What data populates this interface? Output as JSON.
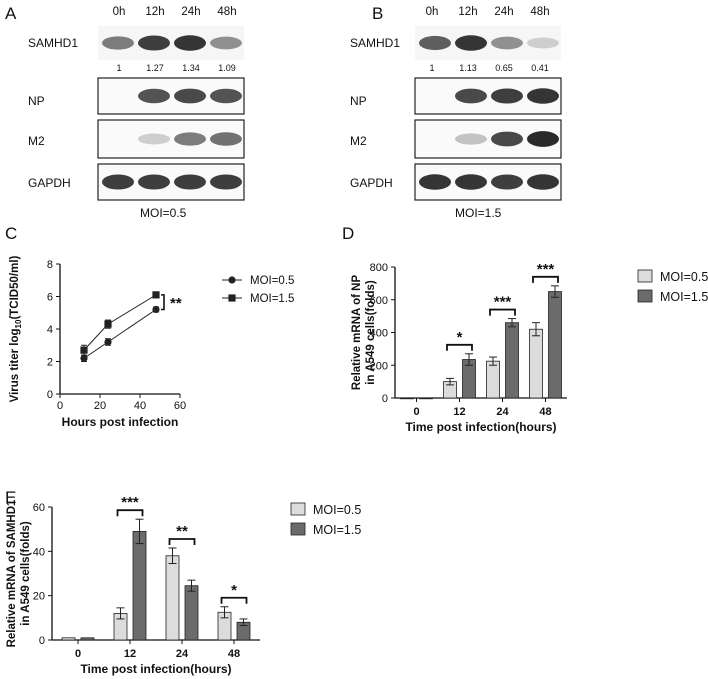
{
  "panel_A": {
    "letter": "A",
    "lanes": [
      "0h",
      "12h",
      "24h",
      "48h"
    ],
    "rows": [
      "SAMHD1",
      "NP",
      "M2",
      "GAPDH"
    ],
    "quant": [
      "1",
      "1.27",
      "1.34",
      "1.09"
    ],
    "condition": "MOI=0.5",
    "band_intensity": {
      "SAMHD1": [
        0.55,
        0.85,
        0.9,
        0.45
      ],
      "NP": [
        0.0,
        0.75,
        0.8,
        0.75
      ],
      "M2": [
        0.0,
        0.15,
        0.55,
        0.6
      ],
      "GAPDH": [
        0.85,
        0.85,
        0.85,
        0.85
      ]
    }
  },
  "panel_B": {
    "letter": "B",
    "lanes": [
      "0h",
      "12h",
      "24h",
      "48h"
    ],
    "rows": [
      "SAMHD1",
      "NP",
      "M2",
      "GAPDH"
    ],
    "quant": [
      "1",
      "1.13",
      "0.65",
      "0.41"
    ],
    "condition": "MOI=1.5",
    "band_intensity": {
      "SAMHD1": [
        0.7,
        0.9,
        0.45,
        0.15
      ],
      "NP": [
        0.0,
        0.8,
        0.85,
        0.9
      ],
      "M2": [
        0.0,
        0.2,
        0.8,
        0.95
      ],
      "GAPDH": [
        0.9,
        0.9,
        0.85,
        0.9
      ]
    }
  },
  "chart_data": [
    {
      "panel": "C",
      "type": "line",
      "xlabel": "Hours post infection",
      "ylabel": "Virus titer log10(TCID50/ml)",
      "ylabel_parts": [
        "Virus titer log",
        "10",
        "(TCID50/ml)"
      ],
      "xlim": [
        0,
        60
      ],
      "ylim": [
        0,
        8
      ],
      "xticks": [
        "0",
        "20",
        "40",
        "60"
      ],
      "yticks": [
        "0",
        "2",
        "4",
        "6",
        "8"
      ],
      "x": [
        12,
        24,
        48
      ],
      "series": [
        {
          "name": "MOI=0.5",
          "marker": "circle",
          "values": [
            2.2,
            3.2,
            5.2
          ],
          "err": [
            0.2,
            0.2,
            0.15
          ]
        },
        {
          "name": "MOI=1.5",
          "marker": "square",
          "values": [
            2.7,
            4.3,
            6.1
          ],
          "err": [
            0.3,
            0.25,
            0.15
          ]
        }
      ],
      "significance": "**",
      "legend_position": "top-right"
    },
    {
      "panel": "D",
      "type": "bar",
      "xlabel": "Time post infection(hours)",
      "ylabel_lines": [
        "Relative mRNA of  NP",
        "in A549 cells(folds)"
      ],
      "categories": [
        "0",
        "12",
        "24",
        "48"
      ],
      "ylim": [
        0,
        800
      ],
      "yticks": [
        "0",
        "200",
        "400",
        "600",
        "800"
      ],
      "series": [
        {
          "name": "MOI=0.5",
          "color": "#dcdcdc",
          "values": [
            0,
            100,
            225,
            420
          ],
          "err": [
            0,
            20,
            25,
            40
          ]
        },
        {
          "name": "MOI=1.5",
          "color": "#6b6b6b",
          "values": [
            0,
            235,
            460,
            650
          ],
          "err": [
            0,
            35,
            25,
            35
          ]
        }
      ],
      "significance": [
        "",
        "*",
        "***",
        "***"
      ],
      "legend_position": "right"
    },
    {
      "panel": "E",
      "type": "bar",
      "xlabel": "Time post infection(hours)",
      "ylabel_lines": [
        "Relative mRNA of  SAMHD1",
        "in A549 cells(folds)"
      ],
      "categories": [
        "0",
        "12",
        "24",
        "48"
      ],
      "ylim": [
        0,
        60
      ],
      "yticks": [
        "0",
        "20",
        "40",
        "60"
      ],
      "series": [
        {
          "name": "MOI=0.5",
          "color": "#dcdcdc",
          "values": [
            1,
            12,
            38,
            12.5
          ],
          "err": [
            0,
            2.5,
            3.5,
            2.5
          ]
        },
        {
          "name": "MOI=1.5",
          "color": "#6b6b6b",
          "values": [
            1,
            49,
            24.5,
            8
          ],
          "err": [
            0,
            5.5,
            2.5,
            1.5
          ]
        }
      ],
      "significance": [
        "",
        "***",
        "**",
        "*"
      ],
      "legend_position": "right"
    }
  ]
}
